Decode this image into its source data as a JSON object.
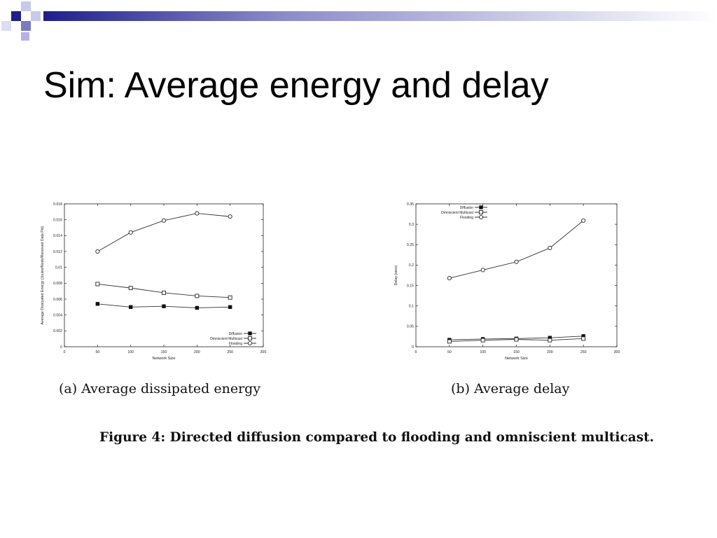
{
  "slide": {
    "title": "Sim: Average energy and delay",
    "caption_a": "(a) Average dissipated energy",
    "caption_b": "(b) Average delay",
    "figure_caption": "Figure 4: Directed diffusion compared to flooding and omniscient multicast."
  },
  "colors": {
    "accent_dark": "#1f1f8a",
    "accent_mid": "#7a7ac4",
    "accent_light": "#c9c9ee",
    "line": "#333333"
  },
  "chart_data": [
    {
      "type": "line",
      "xlabel": "Network Size",
      "ylabel": "Average Dissipated Energy (Joules/Node/Received Data Pkt)",
      "xlim": [
        0,
        300
      ],
      "ylim": [
        0,
        0.018
      ],
      "x_ticks": [
        "0",
        "50",
        "100",
        "150",
        "200",
        "250",
        "300"
      ],
      "y_ticks": [
        "0",
        "0.002",
        "0.004",
        "0.006",
        "0.008",
        "0.01",
        "0.012",
        "0.014",
        "0.016",
        "0.018"
      ],
      "legend_position": "bottom-right",
      "x": [
        50,
        100,
        150,
        200,
        250
      ],
      "series": [
        {
          "name": "Diffusion",
          "marker": "filled-square",
          "values": [
            0.0054,
            0.005,
            0.0051,
            0.0049,
            0.005
          ]
        },
        {
          "name": "Omniscient Multicast",
          "marker": "open-square",
          "values": [
            0.0079,
            0.0074,
            0.0068,
            0.0064,
            0.0062
          ]
        },
        {
          "name": "Flooding",
          "marker": "open-circle",
          "values": [
            0.012,
            0.0144,
            0.0159,
            0.0168,
            0.0164
          ]
        }
      ]
    },
    {
      "type": "line",
      "xlabel": "Network Size",
      "ylabel": "Delay (secs)",
      "xlim": [
        0,
        300
      ],
      "ylim": [
        0,
        0.35
      ],
      "x_ticks": [
        "0",
        "50",
        "100",
        "150",
        "200",
        "250",
        "300"
      ],
      "y_ticks": [
        "0",
        "0.05",
        "0.1",
        "0.15",
        "0.2",
        "0.25",
        "0.3",
        "0.35"
      ],
      "legend_position": "top-left",
      "x": [
        50,
        100,
        150,
        200,
        250
      ],
      "series": [
        {
          "name": "Diffusion",
          "marker": "filled-square",
          "values": [
            0.017,
            0.019,
            0.02,
            0.022,
            0.026
          ]
        },
        {
          "name": "Omniscient Multicast",
          "marker": "open-square",
          "values": [
            0.013,
            0.016,
            0.018,
            0.016,
            0.02
          ]
        },
        {
          "name": "Flooding",
          "marker": "open-circle",
          "values": [
            0.168,
            0.188,
            0.208,
            0.242,
            0.309
          ]
        }
      ]
    }
  ]
}
